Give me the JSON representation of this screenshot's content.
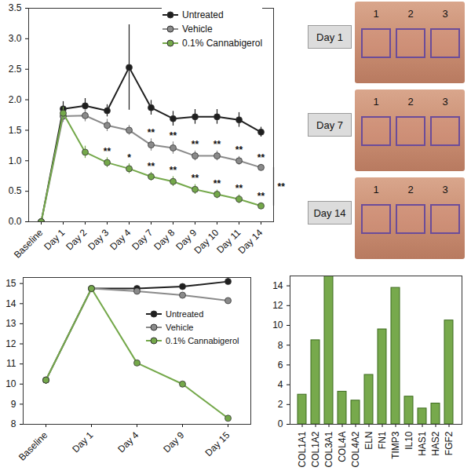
{
  "chart_data": [
    {
      "type": "line",
      "categories": [
        "Baseline",
        "Day 1",
        "Day 2",
        "Day 3",
        "Day 4",
        "Day 7",
        "Day 8",
        "Day 9",
        "Day 10",
        "Day 11",
        "Day 14"
      ],
      "series": [
        {
          "name": "Untreated",
          "color": "#1f1f1f",
          "marker": "circle",
          "values": [
            0,
            1.85,
            1.9,
            1.82,
            2.53,
            1.87,
            1.69,
            1.72,
            1.72,
            1.67,
            1.47
          ],
          "errors": [
            0,
            0.12,
            0.12,
            0.1,
            0.7,
            0.12,
            0.12,
            0.12,
            0.12,
            0.12,
            0.08
          ]
        },
        {
          "name": "Vehicle",
          "color": "#8a8a8a",
          "marker": "circle",
          "values": [
            0,
            1.73,
            1.74,
            1.58,
            1.5,
            1.26,
            1.21,
            1.08,
            1.08,
            1.0,
            0.89
          ],
          "errors": [
            0,
            0.1,
            0.1,
            0.1,
            0.08,
            0.1,
            0.1,
            0.08,
            0.08,
            0.07,
            0.05
          ]
        },
        {
          "name": "0.1% Cannabigerol",
          "color": "#74a84a",
          "marker": "circle",
          "values": [
            0,
            1.78,
            1.14,
            0.97,
            0.87,
            0.74,
            0.66,
            0.53,
            0.45,
            0.37,
            0.26
          ],
          "errors": [
            0,
            0.1,
            0.1,
            0.08,
            0.08,
            0.07,
            0.08,
            0.08,
            0.07,
            0.07,
            0.05
          ]
        }
      ],
      "ylim": [
        0,
        3.5
      ],
      "yticks": [
        {
          "value": 0,
          "label": "0.0"
        },
        0.5,
        {
          "value": 1,
          "label": "1.0"
        },
        1.5,
        {
          "value": 2,
          "label": "2.0"
        },
        2.5,
        {
          "value": 3,
          "label": "3.0"
        },
        3.5
      ],
      "grid": false,
      "legend": "top",
      "annotations": [
        {
          "category": "Day 7",
          "series": "Vehicle",
          "text": "**"
        },
        {
          "category": "Day 8",
          "series": "Vehicle",
          "text": "**"
        },
        {
          "category": "Day 9",
          "series": "Vehicle",
          "text": "**"
        },
        {
          "category": "Day 10",
          "series": "Vehicle",
          "text": "**"
        },
        {
          "category": "Day 11",
          "series": "Vehicle",
          "text": "**"
        },
        {
          "category": "Day 14",
          "series": "Vehicle",
          "text": "**"
        },
        {
          "category": "Day 3",
          "series": "0.1% Cannabigerol",
          "text": "**"
        },
        {
          "category": "Day 4",
          "series": "0.1% Cannabigerol",
          "text": "*"
        },
        {
          "category": "Day 7",
          "series": "0.1% Cannabigerol",
          "text": "**"
        },
        {
          "category": "Day 8",
          "series": "0.1% Cannabigerol",
          "text": "**"
        },
        {
          "category": "Day 9",
          "series": "0.1% Cannabigerol",
          "text": "**"
        },
        {
          "category": "Day 10",
          "series": "0.1% Cannabigerol",
          "text": "**"
        },
        {
          "category": "Day 11",
          "series": "0.1% Cannabigerol",
          "text": "**"
        },
        {
          "category": "Day 14",
          "series": "0.1% Cannabigerol",
          "text": "**"
        },
        {
          "category": "Day 14",
          "between": [
            "Vehicle",
            "0.1% Cannabigerol"
          ],
          "text": "**"
        }
      ]
    },
    {
      "type": "line",
      "categories": [
        "Baseline",
        "Day 1",
        "Day 4",
        "Day 9",
        "Day 15"
      ],
      "series": [
        {
          "name": "Untreated",
          "color": "#1f1f1f",
          "marker": "circle",
          "values": [
            10.2,
            14.75,
            14.75,
            14.85,
            15.1
          ],
          "errors": [
            0.08,
            0.12,
            0.12,
            0.12,
            0.15
          ]
        },
        {
          "name": "Vehicle",
          "color": "#8a8a8a",
          "marker": "circle",
          "values": [
            10.2,
            14.75,
            14.62,
            14.42,
            14.15
          ],
          "errors": [
            0.08,
            0.1,
            0.1,
            0.1,
            0.12
          ]
        },
        {
          "name": "0.1% Cannabigerol",
          "color": "#74a84a",
          "marker": "circle",
          "values": [
            10.2,
            14.75,
            11.05,
            10.0,
            8.3
          ],
          "errors": [
            0.08,
            0.1,
            0.08,
            0.08,
            0.08
          ]
        }
      ],
      "ylim": [
        8,
        15.3
      ],
      "yticks": [
        8,
        9,
        10,
        11,
        12,
        13,
        14,
        15
      ],
      "grid": false,
      "legend": "right"
    },
    {
      "type": "bar",
      "categories": [
        "COL1A1",
        "COL1A2",
        "COL3A1",
        "COL4A",
        "COL4A2",
        "ELN",
        "FN1",
        "TIMP3",
        "IL10",
        "HAS1",
        "HAS2",
        "FGF2"
      ],
      "values": [
        3.0,
        8.5,
        15.0,
        3.3,
        2.4,
        5.0,
        9.6,
        13.8,
        2.8,
        1.6,
        2.1,
        10.5
      ],
      "color": "#77a94c",
      "ylim": [
        0,
        15
      ],
      "yticks": [
        0,
        2,
        4,
        6,
        8,
        10,
        12,
        14
      ],
      "grid": false
    }
  ],
  "photo_panel": {
    "panels": [
      {
        "label": "Day 1",
        "sites": [
          "1",
          "2",
          "3"
        ]
      },
      {
        "label": "Day 7",
        "sites": [
          "1",
          "2",
          "3"
        ]
      },
      {
        "label": "Day 14",
        "sites": [
          "1",
          "2",
          "3"
        ]
      }
    ]
  }
}
